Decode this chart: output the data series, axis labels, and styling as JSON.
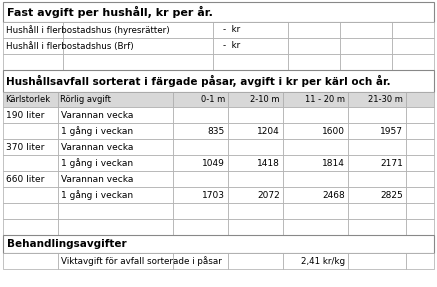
{
  "background_color": "#ffffff",
  "title1": "Fast avgift per hushåll, kr per år.",
  "title2": "Hushållsavfall sorterat i färgade påsar, avgift i kr per kärl och år.",
  "title3": "Behandlingsavgifter",
  "row1_label": "Hushåll i flerbostadshus (hyresrätter)",
  "row2_label": "Hushåll i flerbostadshus (Brf)",
  "dash_val": "-  kr",
  "col_headers": [
    "Kärlstorlek",
    "Rörlig avgift",
    "0-1 m",
    "2-10 m",
    "11 - 20 m",
    "21-30 m"
  ],
  "data_rows": [
    [
      "190 liter",
      "Varannan vecka",
      "",
      "",
      "",
      ""
    ],
    [
      "",
      "1 gång i veckan",
      "835",
      "1204",
      "1600",
      "1957"
    ],
    [
      "370 liter",
      "Varannan vecka",
      "",
      "",
      "",
      ""
    ],
    [
      "",
      "1 gång i veckan",
      "1049",
      "1418",
      "1814",
      "2171"
    ],
    [
      "660 liter",
      "Varannan vecka",
      "",
      "",
      "",
      ""
    ],
    [
      "",
      "1 gång i veckan",
      "1703",
      "2072",
      "2468",
      "2825"
    ]
  ],
  "treatment_label": "Viktavgift för avfall sorterade i påsar",
  "treatment_val": "2,41 kr/kg",
  "edge_color": "#999999",
  "edge_color2": "#bbbbbb",
  "header_bg": "#d8d8d8"
}
